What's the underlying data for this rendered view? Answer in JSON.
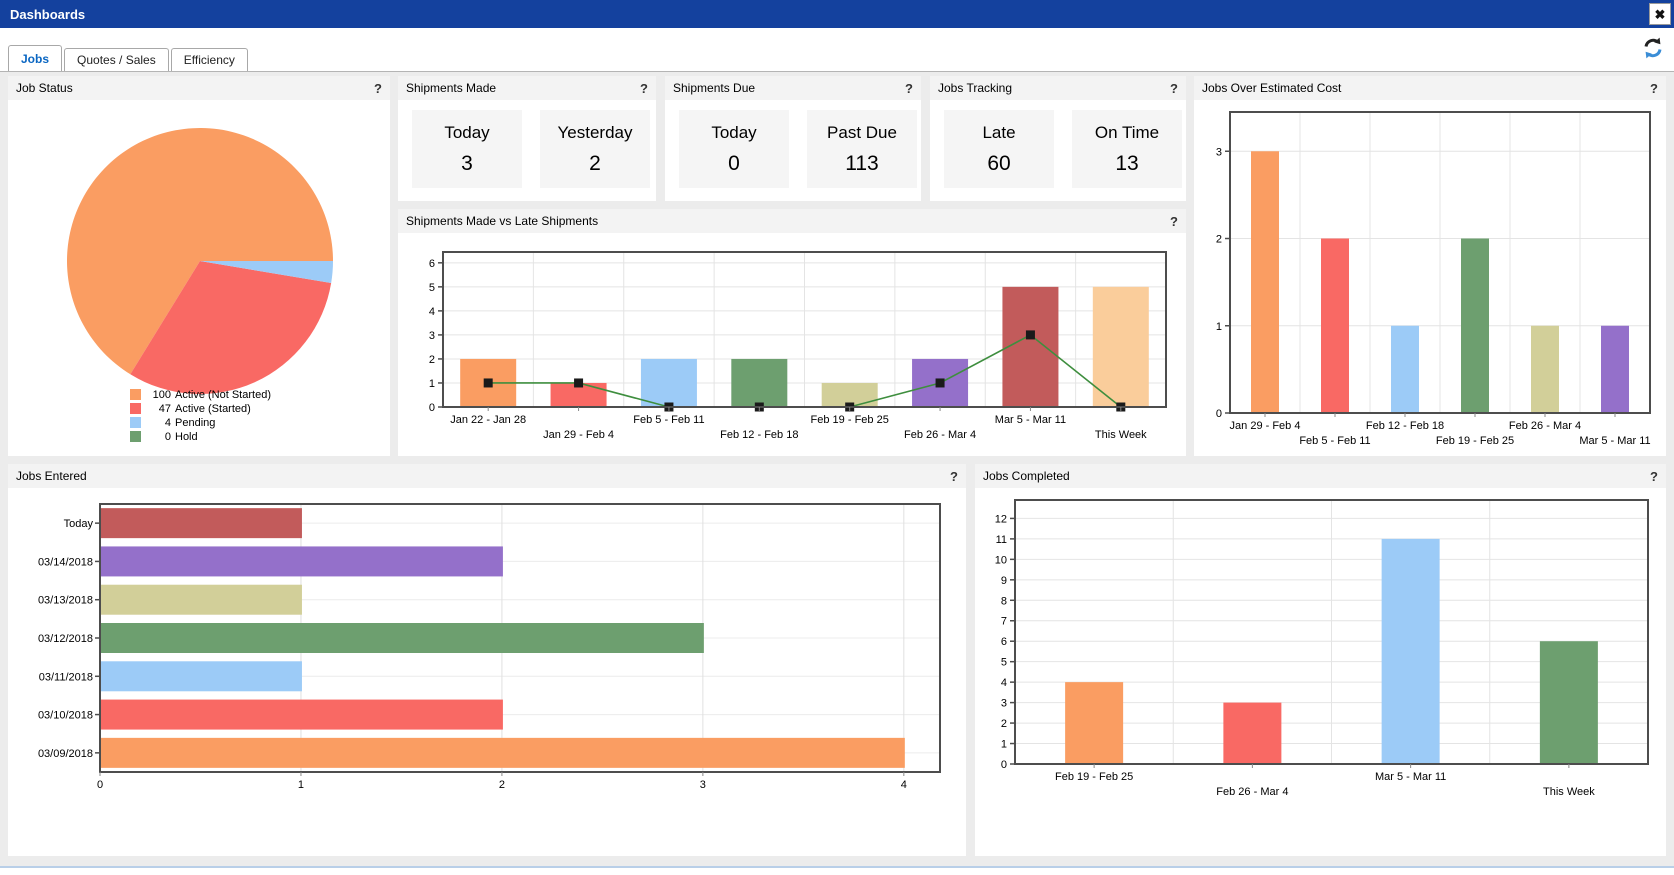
{
  "window": {
    "title": "Dashboards",
    "close_glyph": "✖"
  },
  "help_glyph": "?",
  "tabs": [
    {
      "label": "Jobs",
      "active": true
    },
    {
      "label": "Quotes / Sales",
      "active": false
    },
    {
      "label": "Efficiency",
      "active": false
    }
  ],
  "panels": {
    "job_status": {
      "title": "Job Status"
    },
    "shipments_made": {
      "title": "Shipments Made",
      "stats": [
        {
          "label": "Today",
          "value": "3"
        },
        {
          "label": "Yesterday",
          "value": "2"
        }
      ]
    },
    "shipments_due": {
      "title": "Shipments Due",
      "stats": [
        {
          "label": "Today",
          "value": "0"
        },
        {
          "label": "Past Due",
          "value": "113"
        }
      ]
    },
    "jobs_tracking": {
      "title": "Jobs Tracking",
      "stats": [
        {
          "label": "Late",
          "value": "60"
        },
        {
          "label": "On Time",
          "value": "13"
        }
      ]
    },
    "jobs_over_estimated_cost": {
      "title": "Jobs Over Estimated Cost"
    },
    "shipments_vs_late": {
      "title": "Shipments Made vs Late Shipments"
    },
    "jobs_entered": {
      "title": "Jobs Entered"
    },
    "jobs_completed": {
      "title": "Jobs Completed"
    }
  },
  "colors": {
    "titlebar_blue": "#14419e",
    "active_tab_text": "#0a66c2",
    "refresh_black": "#222222",
    "refresh_blue": "#3a8dd6",
    "line_green": "#3e8e3e"
  },
  "chart_data": [
    {
      "id": "job-status",
      "type": "pie",
      "title": "Job Status",
      "legend_position": "bottom",
      "slices": [
        {
          "value": 100,
          "label": "Active (Not Started)",
          "color": "#FA9D62"
        },
        {
          "value": 47,
          "label": "Active (Started)",
          "color": "#F96964"
        },
        {
          "value": 4,
          "label": "Pending",
          "color": "#9CCBF7"
        },
        {
          "value": 0,
          "label": "Hold",
          "color": "#6D9F6F"
        }
      ]
    },
    {
      "id": "shipments-vs-late",
      "type": "bar+line",
      "title": "Shipments Made vs Late Shipments",
      "categories": [
        "Jan 22 - Jan 28",
        "Jan 29 - Feb 4",
        "Feb 5 - Feb 11",
        "Feb 12 - Feb 18",
        "Feb 19 - Feb 25",
        "Feb 26 - Mar 4",
        "Mar 5 - Mar 11",
        "This Week"
      ],
      "series": [
        {
          "name": "Shipments Made",
          "type": "bar",
          "values": [
            2,
            1,
            2,
            2,
            1,
            2,
            5,
            5
          ],
          "colors": [
            "#FA9D62",
            "#F96964",
            "#9CCBF7",
            "#6D9F6F",
            "#D2CF99",
            "#9470CA",
            "#C25B5B",
            "#FACD9B"
          ]
        },
        {
          "name": "Late Shipments",
          "type": "line",
          "values": [
            1,
            1,
            0,
            0,
            0,
            1,
            3,
            0
          ],
          "color": "#3e8e3e",
          "marker": "black-square"
        }
      ],
      "ylim": [
        0,
        6
      ],
      "yticks": [
        0,
        1,
        2,
        3,
        4,
        5,
        6
      ],
      "grid": true,
      "legend_position": "none"
    },
    {
      "id": "jobs-over-estimated-cost",
      "type": "bar",
      "title": "Jobs Over Estimated Cost",
      "categories": [
        "Jan 29 - Feb 4",
        "Feb 5 - Feb 11",
        "Feb 12 - Feb 18",
        "Feb 19 - Feb 25",
        "Feb 26 - Mar 4",
        "Mar 5 - Mar 11"
      ],
      "values": [
        3,
        2,
        1,
        2,
        1,
        1
      ],
      "colors": [
        "#FA9D62",
        "#F96964",
        "#9CCBF7",
        "#6D9F6F",
        "#D2CF99",
        "#9470CA"
      ],
      "ylim": [
        0,
        3
      ],
      "yticks": [
        0,
        1,
        2,
        3
      ],
      "grid": true
    },
    {
      "id": "jobs-entered",
      "type": "bar-horizontal",
      "title": "Jobs Entered",
      "categories": [
        "Today",
        "03/14/2018",
        "03/13/2018",
        "03/12/2018",
        "03/11/2018",
        "03/10/2018",
        "03/09/2018"
      ],
      "values": [
        1,
        2,
        1,
        3,
        1,
        2,
        4
      ],
      "colors": [
        "#C25B5B",
        "#9470CA",
        "#D2CF99",
        "#6D9F6F",
        "#9CCBF7",
        "#F96964",
        "#FA9D62"
      ],
      "xlim": [
        0,
        4
      ],
      "xticks": [
        0,
        1,
        2,
        3,
        4
      ],
      "grid": true
    },
    {
      "id": "jobs-completed",
      "type": "bar",
      "title": "Jobs Completed",
      "categories": [
        "Feb 19 - Feb 25",
        "Feb 26 - Mar 4",
        "Mar 5 - Mar 11",
        "This Week"
      ],
      "values": [
        4,
        3,
        11,
        6
      ],
      "colors": [
        "#FA9D62",
        "#F96964",
        "#9CCBF7",
        "#6D9F6F"
      ],
      "ylim": [
        0,
        12
      ],
      "yticks": [
        0,
        1,
        2,
        3,
        4,
        5,
        6,
        7,
        8,
        9,
        10,
        11,
        12
      ],
      "grid": true
    }
  ]
}
